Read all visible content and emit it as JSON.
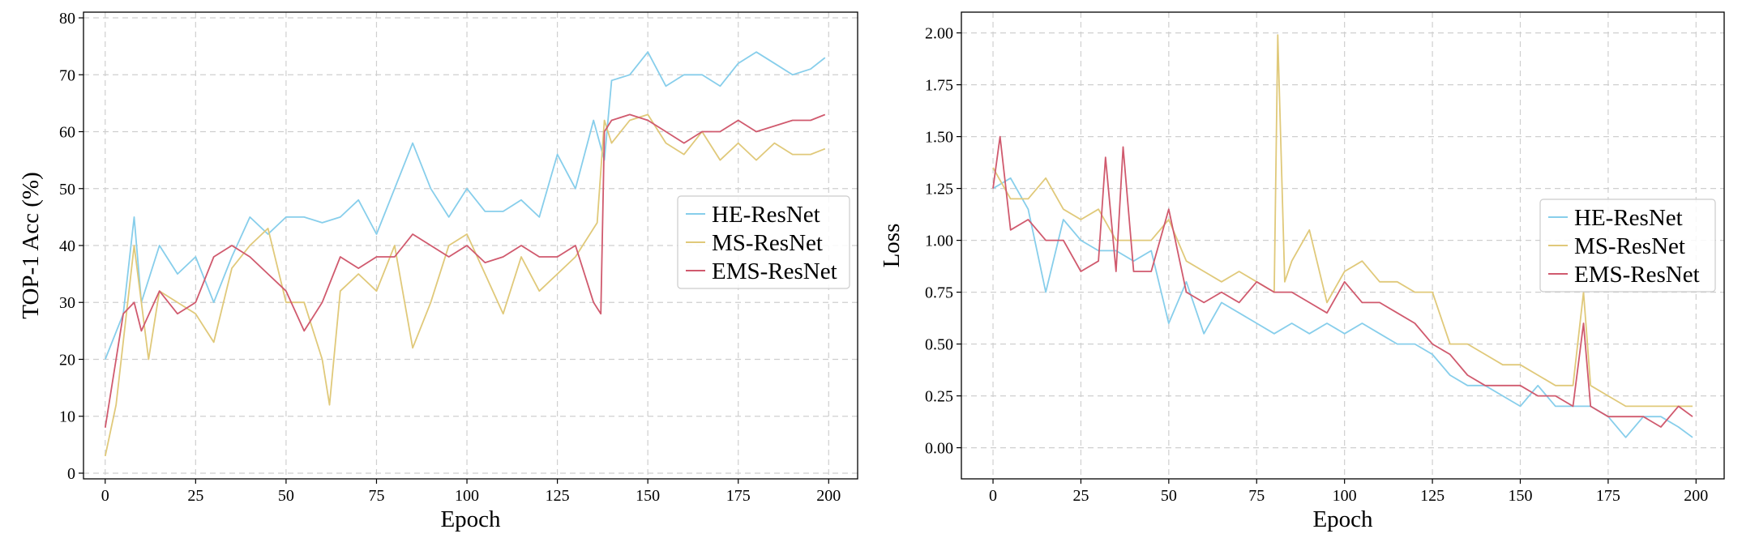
{
  "colors": {
    "he": "#87ceeb",
    "ms": "#e0c97a",
    "ems": "#d05a6e",
    "grid": "#cfcfcf",
    "frame": "#000000"
  },
  "chart_data": [
    {
      "type": "line",
      "title": "",
      "xlabel": "Epoch",
      "ylabel": "TOP-1 Acc (%)",
      "xlim": [
        -6,
        208
      ],
      "ylim": [
        -1,
        81
      ],
      "xticks": [
        0,
        25,
        50,
        75,
        100,
        125,
        150,
        175,
        200
      ],
      "yticks": [
        0,
        10,
        20,
        30,
        40,
        50,
        60,
        70,
        80
      ],
      "grid": true,
      "legend": "center-right",
      "series": [
        {
          "name": "HE-ResNet",
          "color": "#87ceeb",
          "points": [
            [
              0,
              20
            ],
            [
              5,
              28
            ],
            [
              8,
              45
            ],
            [
              10,
              30
            ],
            [
              15,
              40
            ],
            [
              20,
              35
            ],
            [
              25,
              38
            ],
            [
              30,
              30
            ],
            [
              35,
              38
            ],
            [
              40,
              45
            ],
            [
              45,
              42
            ],
            [
              50,
              45
            ],
            [
              55,
              45
            ],
            [
              60,
              44
            ],
            [
              65,
              45
            ],
            [
              70,
              48
            ],
            [
              75,
              42
            ],
            [
              80,
              50
            ],
            [
              85,
              58
            ],
            [
              90,
              50
            ],
            [
              95,
              45
            ],
            [
              100,
              50
            ],
            [
              105,
              46
            ],
            [
              110,
              46
            ],
            [
              115,
              48
            ],
            [
              120,
              45
            ],
            [
              125,
              56
            ],
            [
              130,
              50
            ],
            [
              135,
              62
            ],
            [
              138,
              55
            ],
            [
              140,
              69
            ],
            [
              145,
              70
            ],
            [
              150,
              74
            ],
            [
              155,
              68
            ],
            [
              160,
              70
            ],
            [
              165,
              70
            ],
            [
              170,
              68
            ],
            [
              175,
              72
            ],
            [
              180,
              74
            ],
            [
              185,
              72
            ],
            [
              190,
              70
            ],
            [
              195,
              71
            ],
            [
              199,
              73
            ]
          ]
        },
        {
          "name": "MS-ResNet",
          "color": "#e0c97a",
          "points": [
            [
              0,
              3
            ],
            [
              3,
              12
            ],
            [
              8,
              40
            ],
            [
              12,
              20
            ],
            [
              15,
              32
            ],
            [
              20,
              30
            ],
            [
              25,
              28
            ],
            [
              30,
              23
            ],
            [
              35,
              36
            ],
            [
              40,
              40
            ],
            [
              45,
              43
            ],
            [
              50,
              30
            ],
            [
              55,
              30
            ],
            [
              60,
              20
            ],
            [
              62,
              12
            ],
            [
              65,
              32
            ],
            [
              70,
              35
            ],
            [
              75,
              32
            ],
            [
              80,
              40
            ],
            [
              85,
              22
            ],
            [
              90,
              30
            ],
            [
              95,
              40
            ],
            [
              100,
              42
            ],
            [
              105,
              35
            ],
            [
              110,
              28
            ],
            [
              115,
              38
            ],
            [
              120,
              32
            ],
            [
              125,
              35
            ],
            [
              130,
              38
            ],
            [
              136,
              44
            ],
            [
              138,
              62
            ],
            [
              140,
              58
            ],
            [
              145,
              62
            ],
            [
              150,
              63
            ],
            [
              155,
              58
            ],
            [
              160,
              56
            ],
            [
              165,
              60
            ],
            [
              170,
              55
            ],
            [
              175,
              58
            ],
            [
              180,
              55
            ],
            [
              185,
              58
            ],
            [
              190,
              56
            ],
            [
              195,
              56
            ],
            [
              199,
              57
            ]
          ]
        },
        {
          "name": "EMS-ResNet",
          "color": "#d05a6e",
          "points": [
            [
              0,
              8
            ],
            [
              3,
              20
            ],
            [
              5,
              28
            ],
            [
              8,
              30
            ],
            [
              10,
              25
            ],
            [
              15,
              32
            ],
            [
              20,
              28
            ],
            [
              25,
              30
            ],
            [
              30,
              38
            ],
            [
              35,
              40
            ],
            [
              40,
              38
            ],
            [
              45,
              35
            ],
            [
              50,
              32
            ],
            [
              55,
              25
            ],
            [
              60,
              30
            ],
            [
              65,
              38
            ],
            [
              70,
              36
            ],
            [
              75,
              38
            ],
            [
              80,
              38
            ],
            [
              85,
              42
            ],
            [
              90,
              40
            ],
            [
              95,
              38
            ],
            [
              100,
              40
            ],
            [
              105,
              37
            ],
            [
              110,
              38
            ],
            [
              115,
              40
            ],
            [
              120,
              38
            ],
            [
              125,
              38
            ],
            [
              130,
              40
            ],
            [
              135,
              30
            ],
            [
              137,
              28
            ],
            [
              138,
              60
            ],
            [
              140,
              62
            ],
            [
              145,
              63
            ],
            [
              150,
              62
            ],
            [
              155,
              60
            ],
            [
              160,
              58
            ],
            [
              165,
              60
            ],
            [
              170,
              60
            ],
            [
              175,
              62
            ],
            [
              180,
              60
            ],
            [
              185,
              61
            ],
            [
              190,
              62
            ],
            [
              195,
              62
            ],
            [
              199,
              63
            ]
          ]
        }
      ]
    },
    {
      "type": "line",
      "title": "",
      "xlabel": "Epoch",
      "ylabel": "Loss",
      "xlim": [
        -9,
        208
      ],
      "ylim": [
        -0.15,
        2.1
      ],
      "xticks": [
        0,
        25,
        50,
        75,
        100,
        125,
        150,
        175,
        200
      ],
      "yticks": [
        "0.00",
        "0.25",
        "0.50",
        "0.75",
        "1.00",
        "1.25",
        "1.50",
        "1.75",
        "2.00"
      ],
      "grid": true,
      "legend": "center-right",
      "series": [
        {
          "name": "HE-ResNet",
          "color": "#87ceeb",
          "points": [
            [
              0,
              1.25
            ],
            [
              5,
              1.3
            ],
            [
              10,
              1.15
            ],
            [
              15,
              0.75
            ],
            [
              20,
              1.1
            ],
            [
              25,
              1.0
            ],
            [
              30,
              0.95
            ],
            [
              35,
              0.95
            ],
            [
              40,
              0.9
            ],
            [
              45,
              0.95
            ],
            [
              50,
              0.6
            ],
            [
              55,
              0.8
            ],
            [
              60,
              0.55
            ],
            [
              65,
              0.7
            ],
            [
              70,
              0.65
            ],
            [
              75,
              0.6
            ],
            [
              80,
              0.55
            ],
            [
              85,
              0.6
            ],
            [
              90,
              0.55
            ],
            [
              95,
              0.6
            ],
            [
              100,
              0.55
            ],
            [
              105,
              0.6
            ],
            [
              110,
              0.55
            ],
            [
              115,
              0.5
            ],
            [
              120,
              0.5
            ],
            [
              125,
              0.45
            ],
            [
              130,
              0.35
            ],
            [
              135,
              0.3
            ],
            [
              140,
              0.3
            ],
            [
              145,
              0.25
            ],
            [
              150,
              0.2
            ],
            [
              155,
              0.3
            ],
            [
              160,
              0.2
            ],
            [
              165,
              0.2
            ],
            [
              170,
              0.2
            ],
            [
              175,
              0.15
            ],
            [
              180,
              0.05
            ],
            [
              185,
              0.15
            ],
            [
              190,
              0.15
            ],
            [
              195,
              0.1
            ],
            [
              199,
              0.05
            ]
          ]
        },
        {
          "name": "MS-ResNet",
          "color": "#e0c97a",
          "points": [
            [
              0,
              1.35
            ],
            [
              5,
              1.2
            ],
            [
              10,
              1.2
            ],
            [
              15,
              1.3
            ],
            [
              20,
              1.15
            ],
            [
              25,
              1.1
            ],
            [
              30,
              1.15
            ],
            [
              35,
              1.0
            ],
            [
              40,
              1.0
            ],
            [
              45,
              1.0
            ],
            [
              50,
              1.1
            ],
            [
              55,
              0.9
            ],
            [
              60,
              0.85
            ],
            [
              65,
              0.8
            ],
            [
              70,
              0.85
            ],
            [
              75,
              0.8
            ],
            [
              80,
              0.75
            ],
            [
              81,
              1.99
            ],
            [
              83,
              0.8
            ],
            [
              85,
              0.9
            ],
            [
              90,
              1.05
            ],
            [
              95,
              0.7
            ],
            [
              100,
              0.85
            ],
            [
              105,
              0.9
            ],
            [
              110,
              0.8
            ],
            [
              115,
              0.8
            ],
            [
              120,
              0.75
            ],
            [
              125,
              0.75
            ],
            [
              130,
              0.5
            ],
            [
              135,
              0.5
            ],
            [
              140,
              0.45
            ],
            [
              145,
              0.4
            ],
            [
              150,
              0.4
            ],
            [
              155,
              0.35
            ],
            [
              160,
              0.3
            ],
            [
              165,
              0.3
            ],
            [
              168,
              0.75
            ],
            [
              170,
              0.3
            ],
            [
              175,
              0.25
            ],
            [
              180,
              0.2
            ],
            [
              185,
              0.2
            ],
            [
              190,
              0.2
            ],
            [
              195,
              0.2
            ],
            [
              199,
              0.2
            ]
          ]
        },
        {
          "name": "EMS-ResNet",
          "color": "#d05a6e",
          "points": [
            [
              0,
              1.25
            ],
            [
              2,
              1.5
            ],
            [
              5,
              1.05
            ],
            [
              10,
              1.1
            ],
            [
              15,
              1.0
            ],
            [
              20,
              1.0
            ],
            [
              25,
              0.85
            ],
            [
              30,
              0.9
            ],
            [
              32,
              1.4
            ],
            [
              35,
              0.85
            ],
            [
              37,
              1.45
            ],
            [
              40,
              0.85
            ],
            [
              45,
              0.85
            ],
            [
              50,
              1.15
            ],
            [
              55,
              0.75
            ],
            [
              60,
              0.7
            ],
            [
              65,
              0.75
            ],
            [
              70,
              0.7
            ],
            [
              75,
              0.8
            ],
            [
              80,
              0.75
            ],
            [
              85,
              0.75
            ],
            [
              90,
              0.7
            ],
            [
              95,
              0.65
            ],
            [
              100,
              0.8
            ],
            [
              105,
              0.7
            ],
            [
              110,
              0.7
            ],
            [
              115,
              0.65
            ],
            [
              120,
              0.6
            ],
            [
              125,
              0.5
            ],
            [
              130,
              0.45
            ],
            [
              135,
              0.35
            ],
            [
              140,
              0.3
            ],
            [
              145,
              0.3
            ],
            [
              150,
              0.3
            ],
            [
              155,
              0.25
            ],
            [
              160,
              0.25
            ],
            [
              165,
              0.2
            ],
            [
              168,
              0.6
            ],
            [
              170,
              0.2
            ],
            [
              175,
              0.15
            ],
            [
              180,
              0.15
            ],
            [
              185,
              0.15
            ],
            [
              190,
              0.1
            ],
            [
              195,
              0.2
            ],
            [
              199,
              0.15
            ]
          ]
        }
      ]
    }
  ]
}
